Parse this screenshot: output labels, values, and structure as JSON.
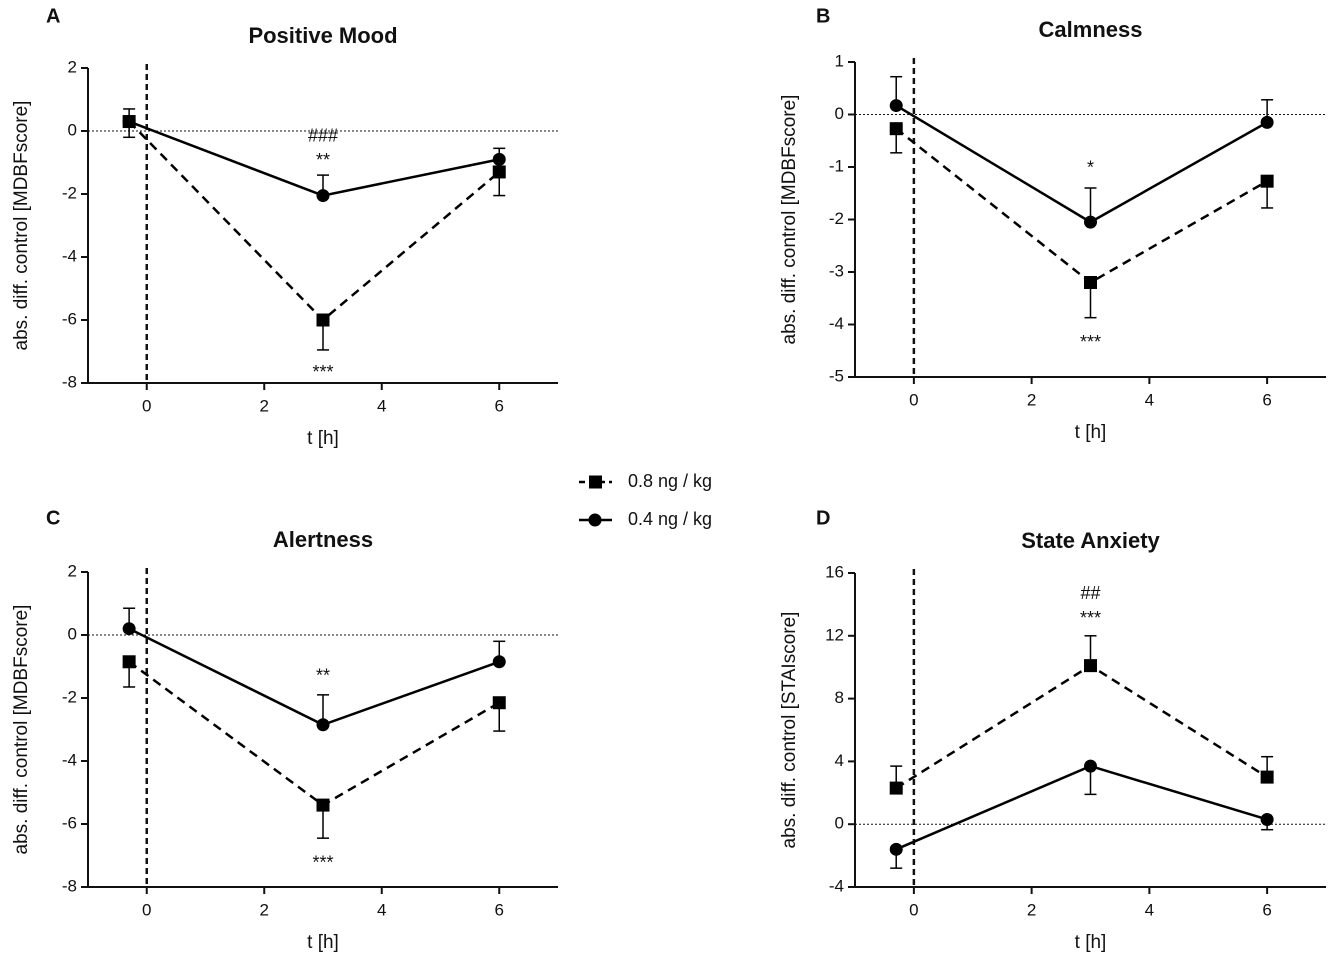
{
  "chart_data": [
    {
      "type": "line",
      "panel": "A",
      "title": "Positive Mood",
      "x_label": "t [h]",
      "y_label": "abs. diff. control [MDBFscore]",
      "x": [
        -0.3,
        3,
        6
      ],
      "xlim": [
        -1,
        7
      ],
      "xticks": [
        0,
        2,
        4,
        6
      ],
      "ylim": [
        -8,
        2
      ],
      "yticks": [
        -8,
        -6,
        -4,
        -2,
        0,
        2
      ],
      "reference_lines": {
        "x": 0,
        "y": 0
      },
      "series": [
        {
          "values": [
            0.3,
            -6.0,
            -1.3
          ],
          "errors": [
            0.5,
            0.95,
            0.75
          ],
          "error_direction": "down"
        },
        {
          "values": [
            0.3,
            -2.05,
            -0.9
          ],
          "errors": [
            0.4,
            0.65,
            0.35
          ],
          "error_direction": "up"
        }
      ],
      "annotations": [
        {
          "text": "###",
          "x": 3,
          "y": -0.06
        },
        {
          "text": "**",
          "x": 3,
          "y": -0.83
        },
        {
          "text": "***",
          "x": 3,
          "y": -7.56
        }
      ]
    },
    {
      "type": "line",
      "panel": "B",
      "title": "Calmness",
      "x_label": "t [h]",
      "y_label": "abs. diff. control [MDBFscore]",
      "x": [
        -0.3,
        3,
        6
      ],
      "xlim": [
        -1,
        7
      ],
      "xticks": [
        0,
        2,
        4,
        6
      ],
      "ylim": [
        -5,
        1
      ],
      "yticks": [
        -5,
        -4,
        -3,
        -2,
        -1,
        0,
        1
      ],
      "reference_lines": {
        "x": 0,
        "y": 0
      },
      "series": [
        {
          "values": [
            -0.27,
            -3.2,
            -1.27
          ],
          "errors": [
            0.46,
            0.67,
            0.51
          ],
          "error_direction": "down"
        },
        {
          "values": [
            0.17,
            -2.05,
            -0.15
          ],
          "errors": [
            0.55,
            0.65,
            0.43
          ],
          "error_direction": "up"
        }
      ],
      "annotations": [
        {
          "text": "*",
          "x": 3,
          "y": -0.96
        },
        {
          "text": "***",
          "x": 3,
          "y": -4.28
        }
      ]
    },
    {
      "type": "line",
      "panel": "C",
      "title": "Alertness",
      "x_label": "t [h]",
      "y_label": "abs. diff. control [MDBFscore]",
      "x": [
        -0.3,
        3,
        6
      ],
      "xlim": [
        -1,
        7
      ],
      "xticks": [
        0,
        2,
        4,
        6
      ],
      "ylim": [
        -8,
        2
      ],
      "yticks": [
        -8,
        -6,
        -4,
        -2,
        0,
        2
      ],
      "reference_lines": {
        "x": 0,
        "y": 0
      },
      "series": [
        {
          "values": [
            -0.85,
            -5.4,
            -2.15
          ],
          "errors": [
            0.8,
            1.05,
            0.9
          ],
          "error_direction": "down"
        },
        {
          "values": [
            0.2,
            -2.85,
            -0.85
          ],
          "errors": [
            0.65,
            0.95,
            0.65
          ],
          "error_direction": "up"
        }
      ],
      "annotations": [
        {
          "text": "**",
          "x": 3,
          "y": -1.2
        },
        {
          "text": "***",
          "x": 3,
          "y": -7.14
        }
      ]
    },
    {
      "type": "line",
      "panel": "D",
      "title": "State Anxiety",
      "x_label": "t [h]",
      "y_label": "abs. diff. control [STAIscore]",
      "x": [
        -0.3,
        3,
        6
      ],
      "xlim": [
        -1,
        7
      ],
      "xticks": [
        0,
        2,
        4,
        6
      ],
      "ylim": [
        -4,
        16
      ],
      "yticks": [
        -4,
        0,
        4,
        8,
        12,
        16
      ],
      "reference_lines": {
        "x": 0,
        "y": 0
      },
      "series": [
        {
          "values": [
            2.3,
            10.1,
            3.0
          ],
          "errors": [
            1.4,
            1.9,
            1.3
          ],
          "error_direction": "up"
        },
        {
          "values": [
            -1.6,
            3.7,
            0.3
          ],
          "errors": [
            1.2,
            1.8,
            0.65
          ],
          "error_direction": "down"
        }
      ],
      "annotations": [
        {
          "text": "##",
          "x": 3,
          "y": 14.9
        },
        {
          "text": "***",
          "x": 3,
          "y": 13.3
        }
      ]
    }
  ],
  "legend": {
    "entries": [
      {
        "name": "0.8 ng / kg",
        "marker": "square",
        "dash": true,
        "color": "#000000"
      },
      {
        "name": "0.4 ng / kg",
        "marker": "circle",
        "dash": false,
        "color": "#000000"
      }
    ]
  }
}
